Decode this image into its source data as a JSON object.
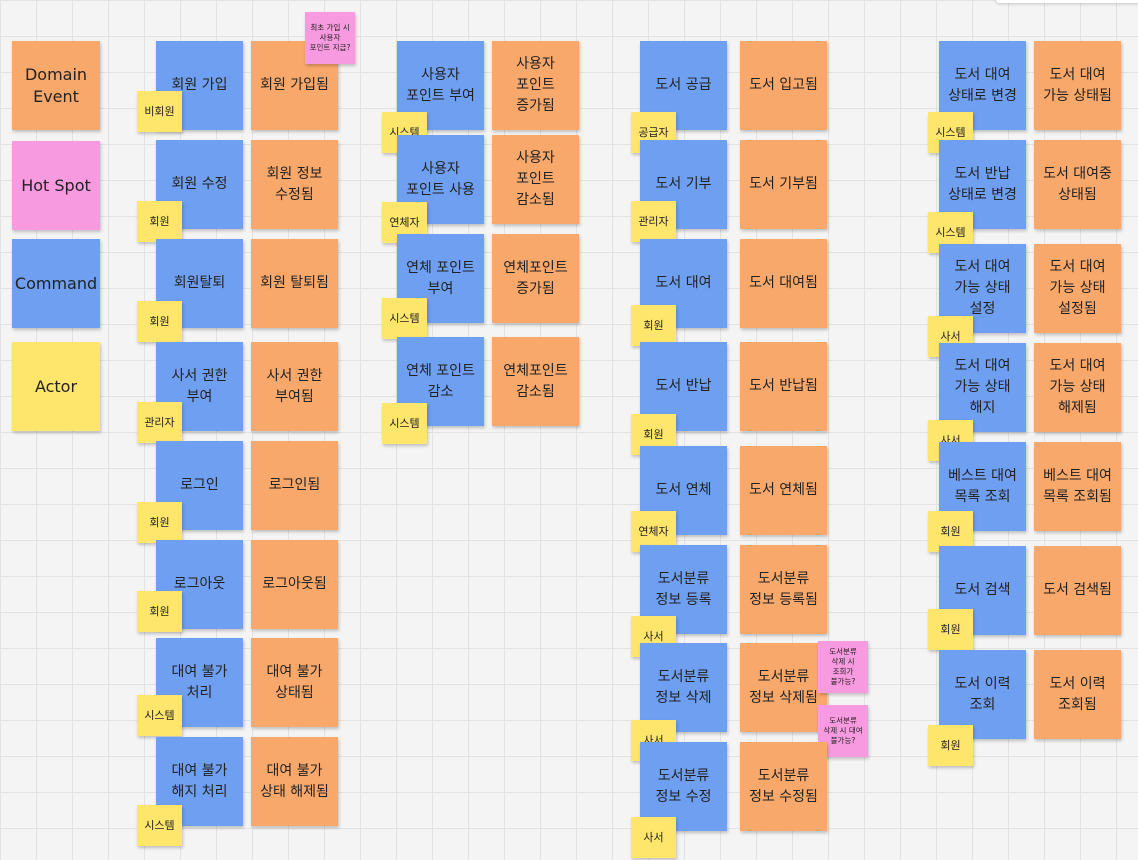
{
  "legend": {
    "domain_event": "Domain\nEvent",
    "hot_spot": "Hot Spot",
    "command": "Command",
    "actor": "Actor"
  },
  "colors": {
    "command": "#6f9ff0",
    "domain_event": "#f8a86a",
    "actor": "#fde66b",
    "hot_spot": "#f89ae0"
  },
  "member": {
    "signup": {
      "command": "회원 가입",
      "event": "회원 가입됨",
      "actor": "비회원",
      "hotspot": "최초 가입 시\n사용자\n포인트 지급?"
    },
    "edit": {
      "command": "회원 수정",
      "event": "회원 정보\n수정됨",
      "actor": "회원"
    },
    "withdraw": {
      "command": "회원탈퇴",
      "event": "회원 탈퇴됨",
      "actor": "회원"
    },
    "librarian": {
      "command": "사서 권한\n부여",
      "event": "사서 권한\n부여됨",
      "actor": "관리자"
    },
    "login": {
      "command": "로그인",
      "event": "로그인됨",
      "actor": "회원"
    },
    "logout": {
      "command": "로그아웃",
      "event": "로그아웃됨",
      "actor": "회원"
    },
    "ban": {
      "command": "대여 불가\n처리",
      "event": "대여 불가\n상태됨",
      "actor": "시스템"
    },
    "unban": {
      "command": "대여 불가\n해지 처리",
      "event": "대여 불가\n상태 해제됨",
      "actor": "시스템"
    }
  },
  "point": {
    "grant": {
      "command": "사용자\n포인트 부여",
      "event": "사용자\n포인트\n증가됨",
      "actor": "시스템"
    },
    "use": {
      "command": "사용자\n포인트 사용",
      "event": "사용자\n포인트\n감소됨",
      "actor": "연체자"
    },
    "late_grant": {
      "command": "연체 포인트\n부여",
      "event": "연체포인트\n증가됨",
      "actor": "시스템"
    },
    "late_reduce": {
      "command": "연체 포인트\n감소",
      "event": "연체포인트\n감소됨",
      "actor": "시스템"
    }
  },
  "book": {
    "supply": {
      "command": "도서 공급",
      "event": "도서 입고됨",
      "actor": "공급자"
    },
    "donate": {
      "command": "도서 기부",
      "event": "도서 기부됨",
      "actor": "관리자"
    },
    "rent": {
      "command": "도서 대여",
      "event": "도서 대여됨",
      "actor": "회원"
    },
    "return": {
      "command": "도서 반납",
      "event": "도서 반납됨",
      "actor": "회원"
    },
    "overdue": {
      "command": "도서 연체",
      "event": "도서 연체됨",
      "actor": "연체자"
    },
    "cat_register": {
      "command": "도서분류\n정보 등록",
      "event": "도서분류\n정보 등록됨",
      "actor": "사서"
    },
    "cat_delete": {
      "command": "도서분류\n정보 삭제",
      "event": "도서분류\n정보 삭제됨",
      "actor": "사서",
      "hotspot1": "도서분류\n삭제 시\n조회가\n불가능?",
      "hotspot2": "도서분류\n삭제 시 대여\n불가능?"
    },
    "cat_edit": {
      "command": "도서분류\n정보 수정",
      "event": "도서분류\n정보 수정됨",
      "actor": "사서"
    }
  },
  "state": {
    "to_rent": {
      "command": "도서 대여\n상태로 변경",
      "event": "도서 대여\n가능 상태됨",
      "actor": "시스템"
    },
    "to_return": {
      "command": "도서 반납\n상태로 변경",
      "event": "도서 대여중\n상태됨",
      "actor": "시스템"
    },
    "set_avail": {
      "command": "도서 대여\n가능 상태\n설정",
      "event": "도서 대여\n가능 상태\n설정됨",
      "actor": "사서"
    },
    "unset_avail": {
      "command": "도서 대여\n가능 상태\n해지",
      "event": "도서 대여\n가능 상태\n해제됨",
      "actor": "사서"
    },
    "best": {
      "command": "베스트 대여\n목록 조회",
      "event": "베스트 대여\n목록 조회됨",
      "actor": "회원"
    },
    "search": {
      "command": "도서 검색",
      "event": "도서 검색됨",
      "actor": "회원"
    },
    "history": {
      "command": "도서 이력\n조회",
      "event": "도서 이력\n조회됨",
      "actor": "회원"
    }
  }
}
